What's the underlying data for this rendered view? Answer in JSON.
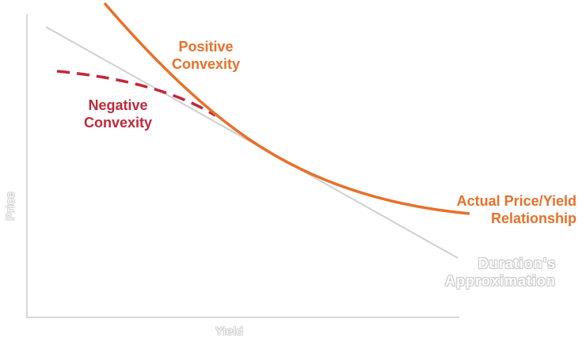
{
  "labels": {
    "positive_line1": "Positive",
    "positive_line2": "Convexity",
    "negative_line1": "Negative",
    "negative_line2": "Convexity",
    "actual_line1": "Actual Price/Yield",
    "actual_line2": "Relationship",
    "duration_line1": "Duration's",
    "duration_line2": "Approximation"
  },
  "axes": {
    "x_label": "Yield",
    "y_label": "Price"
  },
  "colors": {
    "actual_curve": "#e8702a",
    "negative_curve": "#c0283a",
    "duration_line": "#d0d0d0",
    "axis": "#d8d8d8"
  }
}
